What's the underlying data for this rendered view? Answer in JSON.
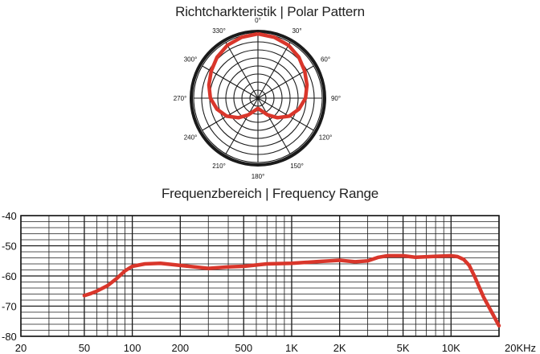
{
  "titles": {
    "polar": "Richtcharkteristik  |  Polar Pattern",
    "frequency": "Frequenzbereich  |  Frequency Range"
  },
  "colors": {
    "curve": "#d9362b",
    "grid": "#1a1a1a",
    "background": "#ffffff"
  },
  "chart_data": [
    {
      "type": "polar",
      "title": "Richtcharkteristik  |  Polar Pattern",
      "pattern": "cardioid",
      "angle_labels": [
        "0°",
        "30°",
        "60°",
        "90°",
        "120°",
        "150°",
        "180°",
        "210°",
        "240°",
        "270°",
        "300°",
        "330°"
      ],
      "angles_deg": [
        0,
        30,
        60,
        90,
        120,
        150,
        180,
        210,
        240,
        270,
        300,
        330
      ],
      "rings": 8,
      "series": [
        {
          "angles_deg": [
            0,
            15,
            30,
            45,
            60,
            75,
            90,
            105,
            120,
            135,
            150,
            165,
            180,
            195,
            210,
            225,
            240,
            255,
            270,
            285,
            300,
            315,
            330,
            345
          ],
          "relative_level": [
            1.0,
            0.98,
            0.95,
            0.9,
            0.84,
            0.79,
            0.74,
            0.66,
            0.56,
            0.43,
            0.3,
            0.2,
            0.16,
            0.2,
            0.3,
            0.43,
            0.56,
            0.66,
            0.74,
            0.79,
            0.84,
            0.9,
            0.95,
            0.98
          ]
        }
      ]
    },
    {
      "type": "line",
      "title": "Frequenzbereich  |  Frequency Range",
      "x_scale": "log",
      "xlim": [
        20,
        20000
      ],
      "ylim": [
        -80,
        -40
      ],
      "x_tick_values": [
        20,
        50,
        100,
        200,
        500,
        1000,
        2000,
        5000,
        10000,
        20000
      ],
      "x_tick_labels": [
        "20",
        "50",
        "100",
        "200",
        "500",
        "1K",
        "2K",
        "5K",
        "10K",
        "20KHz"
      ],
      "y_ticks": [
        -40,
        -50,
        -60,
        -70,
        -80
      ],
      "y_tick_labels": [
        "-40",
        "-50",
        "-60",
        "-70",
        "-80"
      ],
      "grid": true,
      "series": [
        {
          "x": [
            50,
            55,
            60,
            70,
            80,
            90,
            100,
            120,
            150,
            200,
            300,
            400,
            500,
            700,
            1000,
            1500,
            2000,
            2500,
            3000,
            3500,
            4000,
            5000,
            6000,
            8000,
            10000,
            11000,
            12000,
            13000,
            14000,
            16000,
            18000,
            20000
          ],
          "y": [
            -66.5,
            -65.8,
            -65,
            -63.2,
            -60.8,
            -58.3,
            -56.8,
            -56,
            -55.8,
            -56.5,
            -57.5,
            -57,
            -56.8,
            -56,
            -55.8,
            -55.2,
            -54.8,
            -55.3,
            -55,
            -53.8,
            -53.3,
            -53.3,
            -53.8,
            -53.5,
            -53.3,
            -53.6,
            -54.5,
            -56.5,
            -60,
            -67,
            -72,
            -76.5
          ]
        }
      ]
    }
  ]
}
